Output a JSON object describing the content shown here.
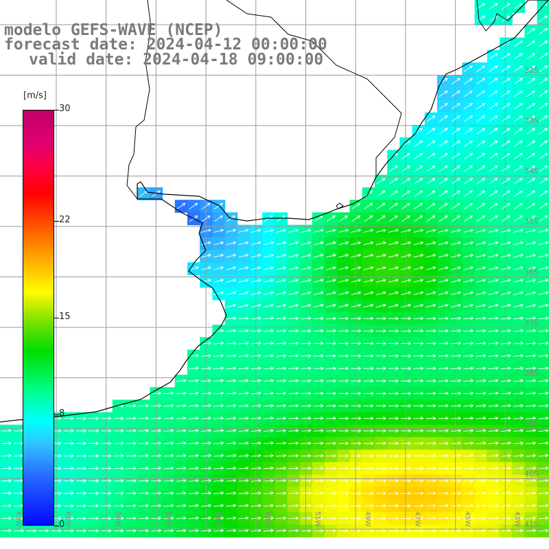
{
  "header": {
    "model_line": "modelo GEFS-WAVE (NCEP)",
    "forecast_line": "forecast date: 2024-04-12 00:00:00",
    "valid_line": "valid date: 2024-04-18 09:00:00"
  },
  "colorbar": {
    "unit": "[m/s]",
    "min": 0,
    "max": 30,
    "ticks": [
      "30",
      "22",
      "15",
      "8",
      "0"
    ],
    "tick_values": [
      30,
      22,
      15,
      8,
      0
    ]
  },
  "map": {
    "lon_range": [
      -63,
      -41
    ],
    "lat_range": [
      -41.5,
      -30
    ],
    "lat_labels": [
      "32S",
      "33S",
      "34S",
      "35S",
      "36S",
      "37S",
      "38S",
      "39S",
      "40S",
      "41S"
    ],
    "lon_labels": [
      "63W",
      "61W",
      "59W",
      "57W",
      "55W",
      "53W",
      "51W",
      "49W",
      "47W",
      "45W",
      "43W"
    ],
    "field": "wind speed",
    "colors": {
      "land": "#ffffff",
      "coast": "#000000",
      "grid": "#9a9a9a",
      "arrow": "#ffffff"
    }
  }
}
